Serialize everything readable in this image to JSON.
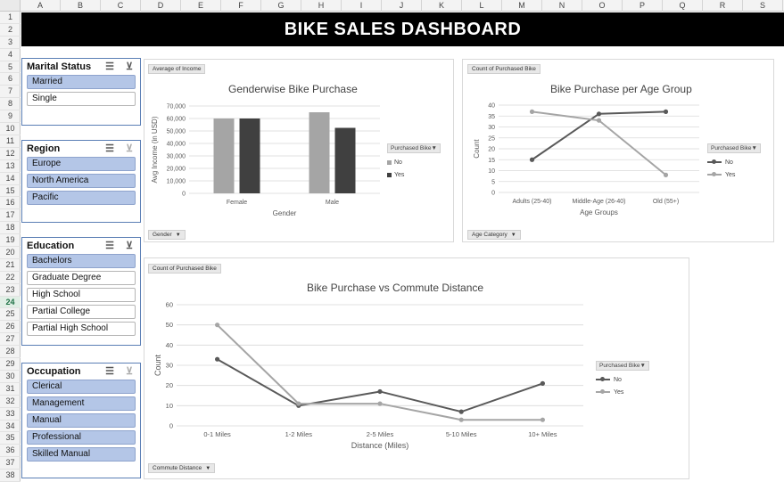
{
  "spreadsheet": {
    "columns": [
      "A",
      "B",
      "C",
      "D",
      "E",
      "F",
      "G",
      "H",
      "I",
      "J",
      "K",
      "L",
      "M",
      "N",
      "O",
      "P",
      "Q",
      "R",
      "S"
    ],
    "rows": [
      "1",
      "2",
      "3",
      "4",
      "5",
      "6",
      "7",
      "8",
      "9",
      "10",
      "11",
      "12",
      "13",
      "14",
      "15",
      "16",
      "17",
      "18",
      "19",
      "20",
      "21",
      "22",
      "23",
      "24",
      "25",
      "26",
      "27",
      "28",
      "29",
      "30",
      "31",
      "32",
      "33",
      "34",
      "35",
      "36",
      "37",
      "38"
    ],
    "active_row": "24"
  },
  "dashboard": {
    "title": "BIKE SALES DASHBOARD"
  },
  "slicers": [
    {
      "title": "Marital Status",
      "items": [
        {
          "label": "Married",
          "selected": true
        },
        {
          "label": "Single",
          "selected": false
        }
      ]
    },
    {
      "title": "Region",
      "items": [
        {
          "label": "Europe",
          "selected": true
        },
        {
          "label": "North America",
          "selected": true
        },
        {
          "label": "Pacific",
          "selected": true
        }
      ]
    },
    {
      "title": "Education",
      "items": [
        {
          "label": "Bachelors",
          "selected": true
        },
        {
          "label": "Graduate Degree",
          "selected": false
        },
        {
          "label": "High School",
          "selected": false
        },
        {
          "label": "Partial College",
          "selected": false
        },
        {
          "label": "Partial High School",
          "selected": false
        }
      ]
    },
    {
      "title": "Occupation",
      "items": [
        {
          "label": "Clerical",
          "selected": true
        },
        {
          "label": "Management",
          "selected": true
        },
        {
          "label": "Manual",
          "selected": true
        },
        {
          "label": "Professional",
          "selected": true
        },
        {
          "label": "Skilled Manual",
          "selected": true
        }
      ]
    }
  ],
  "colors": {
    "no": "#a5a5a5",
    "yes": "#404040",
    "line_no": "#595959",
    "line_yes": "#a5a5a5",
    "slicer_selected": "#b4c6e7",
    "banner": "#000000"
  },
  "gender_chart": {
    "value_field": "Average of Income",
    "axis_field": "Gender",
    "legend_title": "Purchased Bike",
    "legend": [
      "No",
      "Yes"
    ]
  },
  "age_chart": {
    "value_field": "Count of Purchased Bike",
    "axis_field": "Age Category",
    "legend_title": "Purchased Bike",
    "legend": [
      "No",
      "Yes"
    ]
  },
  "commute_chart": {
    "value_field": "Count of Purchased Bike",
    "axis_field": "Commute Distance",
    "legend_title": "Purchased Bike",
    "legend": [
      "No",
      "Yes"
    ]
  },
  "chart_data": [
    {
      "type": "bar",
      "title": "Genderwise Bike Purchase",
      "xlabel": "Gender",
      "ylabel": "Avg Income (in USD)",
      "categories": [
        "Female",
        "Male"
      ],
      "series": [
        {
          "name": "No",
          "values": [
            60000,
            65000
          ]
        },
        {
          "name": "Yes",
          "values": [
            60000,
            52500
          ]
        }
      ],
      "ylim": [
        0,
        70000
      ],
      "yticks": [
        "0",
        "10,000",
        "20,000",
        "30,000",
        "40,000",
        "50,000",
        "60,000",
        "70,000"
      ],
      "grid": true,
      "legend_position": "right"
    },
    {
      "type": "line",
      "title": "Bike Purchase per Age Group",
      "xlabel": "Age Groups",
      "ylabel": "Count",
      "categories": [
        "Adults (25-40)",
        "Middle-Age (26-40)",
        "Old (55+)"
      ],
      "series": [
        {
          "name": "No",
          "values": [
            15,
            36,
            37
          ]
        },
        {
          "name": "Yes",
          "values": [
            37,
            33,
            8
          ]
        }
      ],
      "ylim": [
        0,
        40
      ],
      "yticks": [
        "0",
        "5",
        "10",
        "15",
        "20",
        "25",
        "30",
        "35",
        "40"
      ],
      "grid": true,
      "legend_position": "right"
    },
    {
      "type": "line",
      "title": "Bike Purchase vs Commute Distance",
      "xlabel": "Distance (Miles)",
      "ylabel": "Count",
      "categories": [
        "0-1 Miles",
        "1-2 Miles",
        "2-5 Miles",
        "5-10 Miles",
        "10+ Miles"
      ],
      "series": [
        {
          "name": "No",
          "values": [
            33,
            10,
            17,
            7,
            21
          ]
        },
        {
          "name": "Yes",
          "values": [
            50,
            11,
            11,
            3,
            3
          ]
        }
      ],
      "ylim": [
        0,
        60
      ],
      "yticks": [
        "0",
        "10",
        "20",
        "30",
        "40",
        "50",
        "60"
      ],
      "grid": true,
      "legend_position": "right"
    }
  ]
}
